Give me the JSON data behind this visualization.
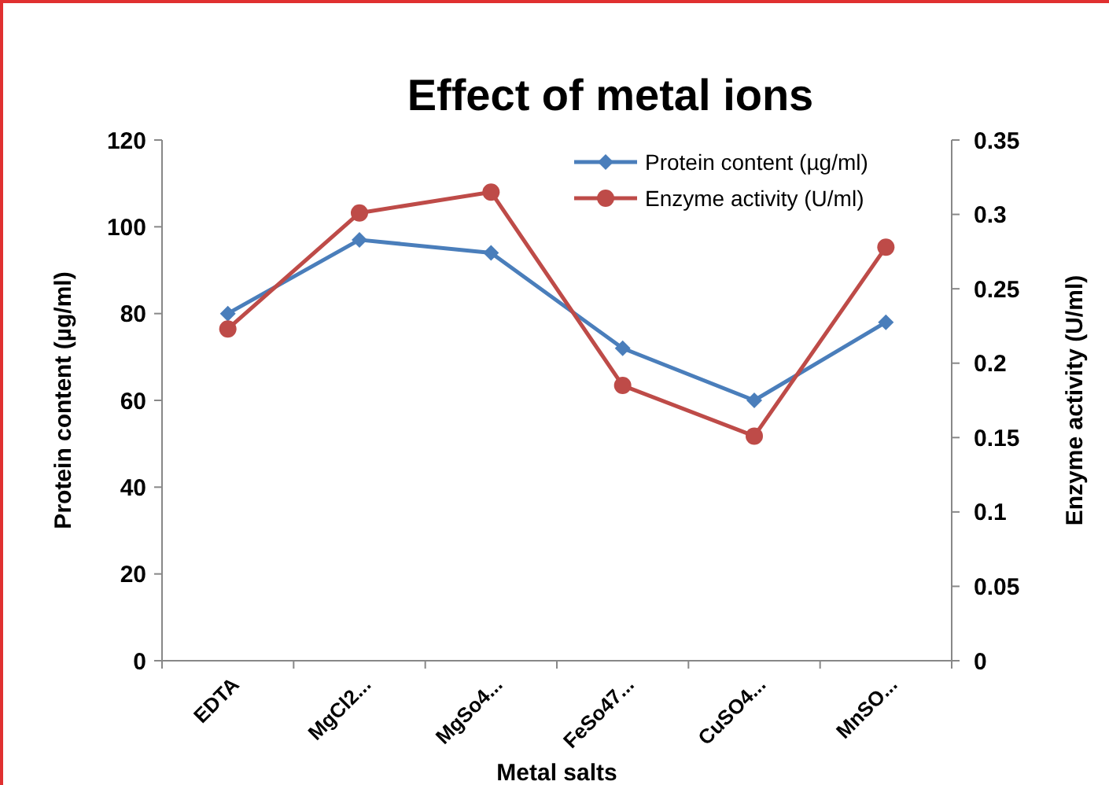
{
  "chart_data": {
    "type": "line",
    "title": "Effect of metal ions",
    "xlabel": "Metal salts",
    "ylabel": "Protein content (µg/ml)",
    "y2label": "Enzyme activity (U/ml)",
    "categories": [
      "EDTA",
      "MgCl2...",
      "MgSo4...",
      "FeSo47...",
      "CuSO4...",
      "MnSO..."
    ],
    "series": [
      {
        "name": "Protein content (µg/ml)",
        "color": "#4a7ebb",
        "values": [
          80,
          97,
          94,
          72,
          60,
          78
        ],
        "marker": "diamond"
      },
      {
        "name": "Enzyme activity (U/ml)",
        "color": "#be4b48",
        "values": [
          0.223,
          0.301,
          0.315,
          0.185,
          0.151,
          0.278
        ],
        "axis": "y2",
        "marker": "circle"
      }
    ],
    "ylim": [
      0,
      120
    ],
    "yticks": [
      0,
      20,
      40,
      60,
      80,
      100,
      120
    ],
    "y2lim": [
      0,
      0.35
    ],
    "y2ticks": [
      0,
      0.05,
      0.1,
      0.15,
      0.2,
      0.25,
      0.3,
      0.35
    ],
    "grid": false,
    "legend": "top right"
  }
}
